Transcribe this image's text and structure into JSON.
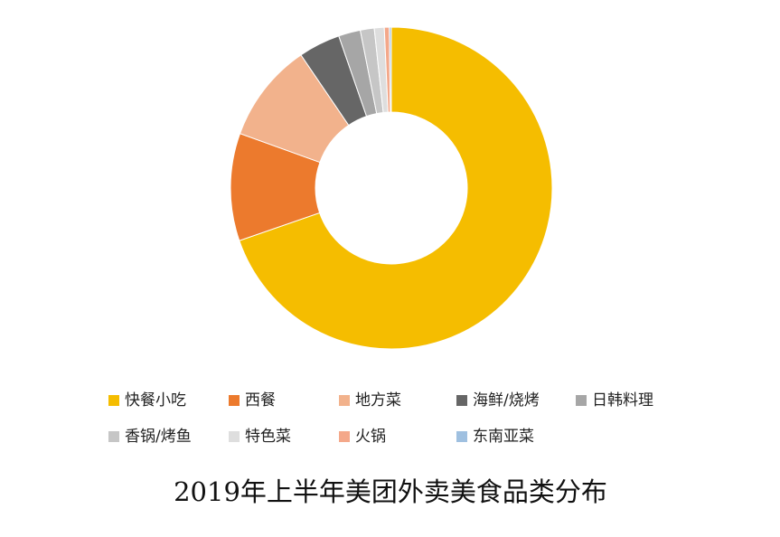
{
  "chart_data": {
    "type": "donut",
    "title": "2019年上半年美团外卖美食品类分布",
    "categories": [
      "快餐小吃",
      "西餐",
      "地方菜",
      "海鲜/烧烤",
      "日韩料理",
      "香锅/烤鱼",
      "特色菜",
      "火锅",
      "东南亚菜"
    ],
    "values": [
      69.7,
      10.8,
      10.0,
      4.2,
      2.2,
      1.4,
      1.0,
      0.5,
      0.2
    ],
    "colors": [
      "#f5bd00",
      "#ec7a2d",
      "#f2b28c",
      "#666666",
      "#a6a6a6",
      "#c6c6c6",
      "#dedede",
      "#f4a88a",
      "#9fc0e0"
    ]
  }
}
